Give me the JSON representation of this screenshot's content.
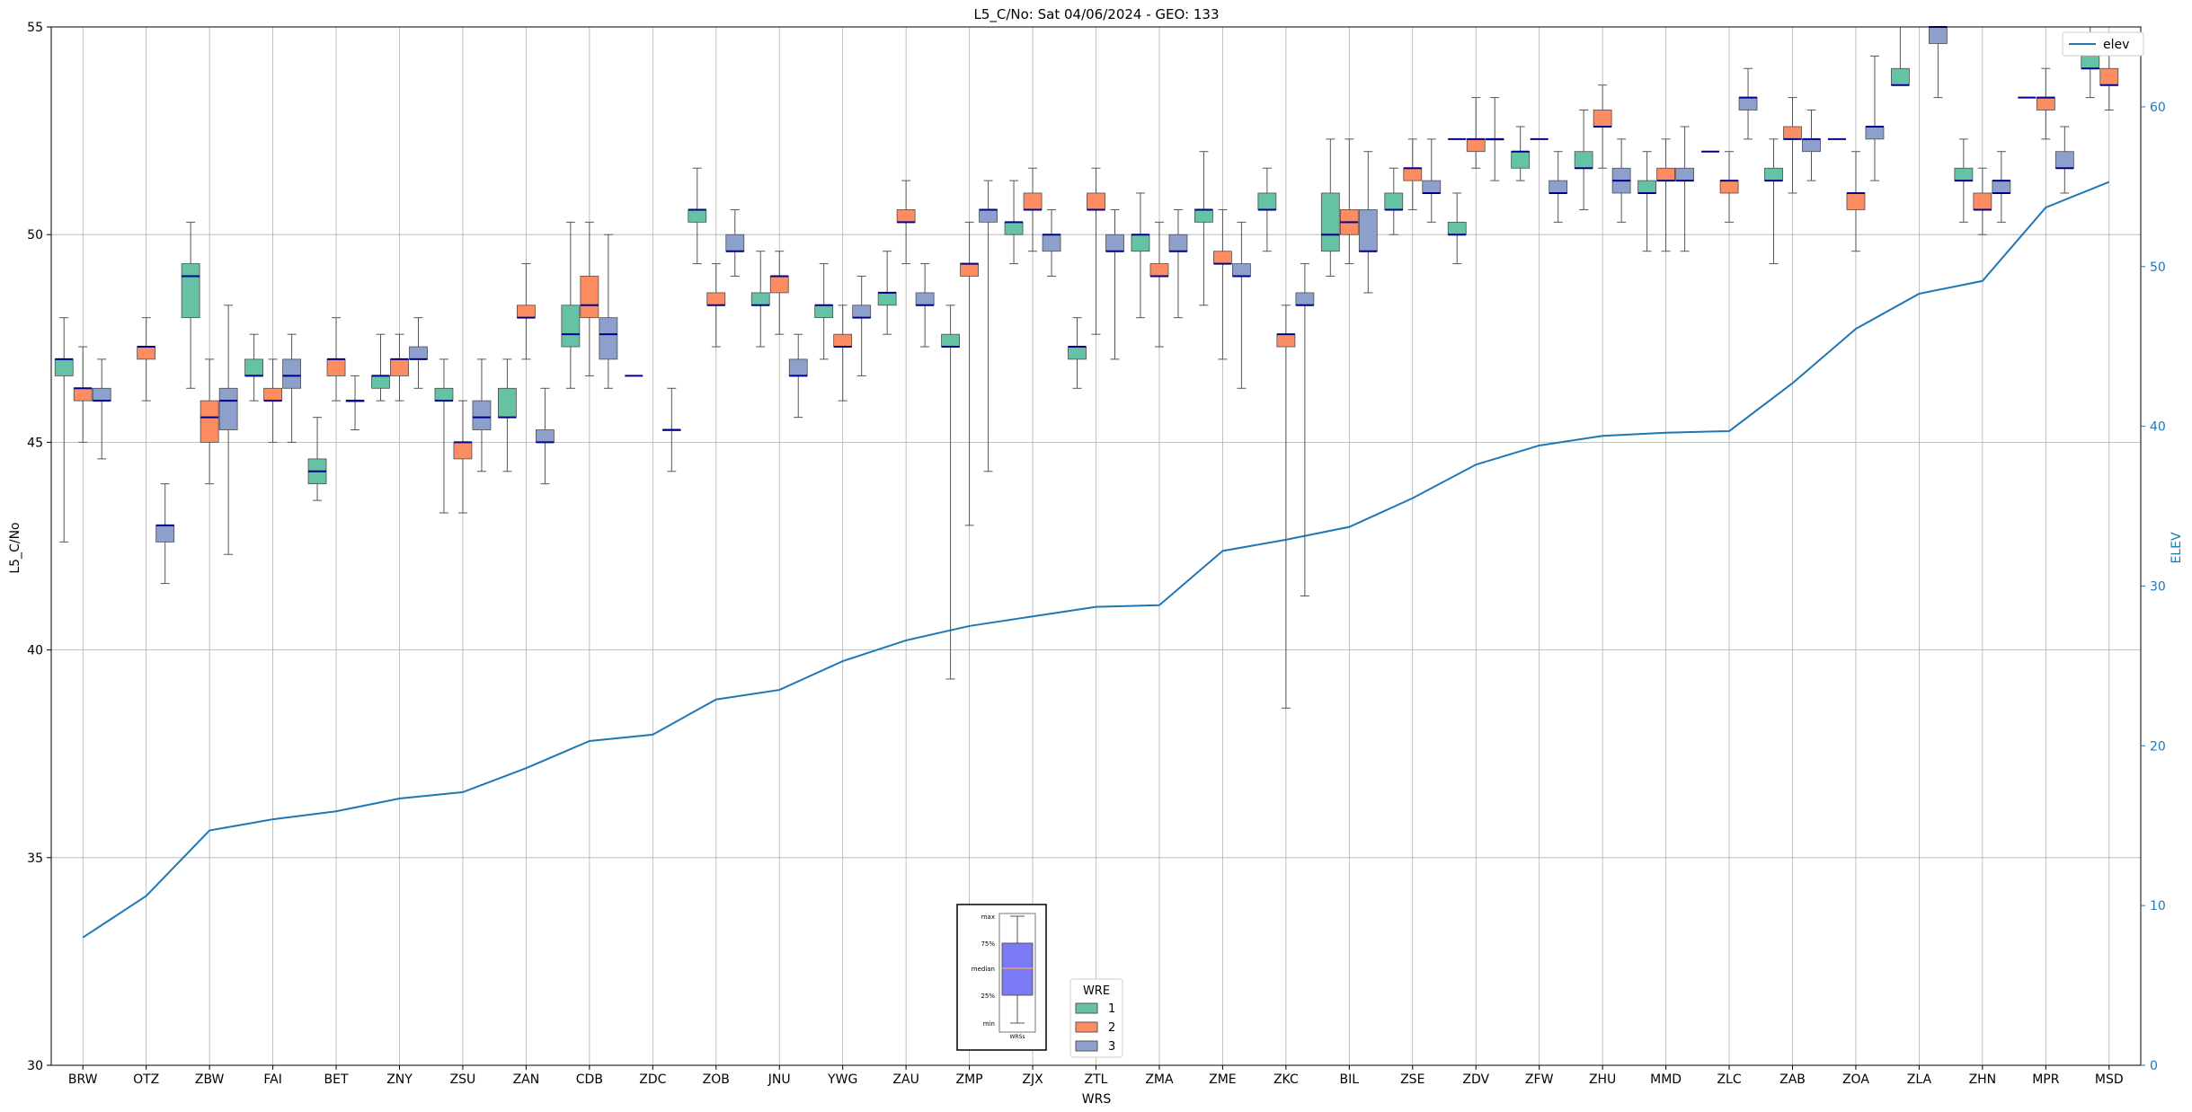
{
  "chart_data": {
    "type": "box",
    "title": "L5_C/No: Sat 04/06/2024 - GEO: 133",
    "xlabel": "WRS",
    "ylabel": "L5_C/No",
    "y2label": "ELEV",
    "ylim": [
      30,
      55
    ],
    "y2lim": [
      0,
      65
    ],
    "yticks": [
      30,
      35,
      40,
      45,
      50,
      55
    ],
    "y2ticks": [
      0,
      10,
      20,
      30,
      40,
      50,
      60
    ],
    "grid": true,
    "categories": [
      "BRW",
      "OTZ",
      "ZBW",
      "FAI",
      "BET",
      "ZNY",
      "ZSU",
      "ZAN",
      "CDB",
      "ZDC",
      "ZOB",
      "JNU",
      "YWG",
      "ZAU",
      "ZMP",
      "ZJX",
      "ZTL",
      "ZMA",
      "ZME",
      "ZKC",
      "BIL",
      "ZSE",
      "ZDV",
      "ZFW",
      "ZHU",
      "MMD",
      "ZLC",
      "ZAB",
      "ZOA",
      "ZLA",
      "ZHN",
      "MPR",
      "MSD"
    ],
    "wre_legend": {
      "title": "WRE",
      "entries": [
        "1",
        "2",
        "3"
      ],
      "placement": "lower-center"
    },
    "line_legend": {
      "label": "elev",
      "placement": "upper-right"
    },
    "stats_legend": {
      "labels": [
        "max",
        "75%",
        "median",
        "25%",
        "min"
      ],
      "xlabel": "WRSs"
    },
    "colors": {
      "wre1": "#66c2a5",
      "wre2": "#fc8d62",
      "wre3": "#8da0cb",
      "median": "#00008b",
      "elev": "#1f77b4",
      "whisker": "#555555",
      "grid": "#b0b0b0"
    },
    "series": [
      {
        "name": "1",
        "boxes": [
          [
            42.6,
            46.6,
            47.0,
            47.0,
            48.0
          ],
          null,
          [
            46.3,
            48.0,
            49.0,
            49.3,
            50.3
          ],
          [
            46.0,
            46.6,
            46.6,
            47.0,
            47.6
          ],
          [
            43.6,
            44.0,
            44.3,
            44.6,
            45.6
          ],
          [
            46.0,
            46.3,
            46.6,
            46.6,
            47.6
          ],
          [
            43.3,
            46.0,
            46.0,
            46.3,
            47.0
          ],
          [
            44.3,
            45.6,
            45.6,
            46.3,
            47.0
          ],
          [
            46.3,
            47.3,
            47.6,
            48.3,
            50.3
          ],
          null,
          [
            49.3,
            50.3,
            50.6,
            50.6,
            51.6
          ],
          [
            47.3,
            48.3,
            48.3,
            48.6,
            49.6
          ],
          [
            47.0,
            48.0,
            48.3,
            48.3,
            49.3
          ],
          [
            47.6,
            48.3,
            48.6,
            48.6,
            49.6
          ],
          [
            39.3,
            47.3,
            47.3,
            47.6,
            48.3
          ],
          [
            49.3,
            50.0,
            50.3,
            50.3,
            51.3
          ],
          [
            46.3,
            47.0,
            47.3,
            47.3,
            48.0
          ],
          [
            48.0,
            49.6,
            50.0,
            50.0,
            51.0
          ],
          [
            48.3,
            50.3,
            50.6,
            50.6,
            52.0
          ],
          [
            49.6,
            50.6,
            50.6,
            51.0,
            51.6
          ],
          [
            49.0,
            49.6,
            50.0,
            51.0,
            52.3
          ],
          [
            50.0,
            50.6,
            50.6,
            51.0,
            51.6
          ],
          [
            49.3,
            50.0,
            50.0,
            50.3,
            51.0
          ],
          [
            51.3,
            51.6,
            52.0,
            52.0,
            52.6
          ],
          [
            50.6,
            51.6,
            51.6,
            52.0,
            53.0
          ],
          [
            49.6,
            51.0,
            51.0,
            51.3,
            52.0
          ],
          null,
          [
            49.3,
            51.3,
            51.3,
            51.6,
            52.3
          ],
          null,
          [
            53.6,
            53.6,
            53.6,
            54.0,
            55.3
          ],
          [
            50.3,
            51.3,
            51.3,
            51.6,
            52.3
          ],
          null,
          [
            53.3,
            54.0,
            54.0,
            54.3,
            55.0
          ]
        ]
      },
      {
        "name": "2",
        "boxes": [
          [
            45.0,
            46.0,
            46.3,
            46.3,
            47.3
          ],
          [
            46.0,
            47.0,
            47.3,
            47.3,
            48.0
          ],
          [
            44.0,
            45.0,
            45.6,
            46.0,
            47.0
          ],
          [
            45.0,
            46.0,
            46.0,
            46.3,
            47.0
          ],
          [
            46.0,
            46.6,
            47.0,
            47.0,
            48.0
          ],
          [
            46.0,
            46.6,
            47.0,
            47.0,
            47.6
          ],
          [
            43.3,
            44.6,
            45.0,
            45.0,
            46.0
          ],
          [
            47.0,
            48.0,
            48.0,
            48.3,
            49.3
          ],
          [
            46.6,
            48.0,
            48.3,
            49.0,
            50.3
          ],
          null,
          [
            47.3,
            48.3,
            48.3,
            48.6,
            49.3
          ],
          [
            47.6,
            48.6,
            49.0,
            49.0,
            49.6
          ],
          [
            46.0,
            47.3,
            47.3,
            47.6,
            48.3
          ],
          [
            49.3,
            50.3,
            50.3,
            50.6,
            51.3
          ],
          [
            43.0,
            49.0,
            49.3,
            49.3,
            50.3
          ],
          [
            49.6,
            50.6,
            50.6,
            51.0,
            51.6
          ],
          [
            47.6,
            50.6,
            50.6,
            51.0,
            51.6
          ],
          [
            47.3,
            49.0,
            49.0,
            49.3,
            50.3
          ],
          [
            47.0,
            49.3,
            49.3,
            49.6,
            50.6
          ],
          [
            38.6,
            47.3,
            47.6,
            47.6,
            48.3
          ],
          [
            49.3,
            50.0,
            50.3,
            50.6,
            52.3
          ],
          [
            50.6,
            51.3,
            51.6,
            51.6,
            52.3
          ],
          [
            51.6,
            52.0,
            52.3,
            52.3,
            53.3
          ],
          null,
          [
            51.6,
            52.6,
            52.6,
            53.0,
            53.6
          ],
          [
            49.6,
            51.3,
            51.3,
            51.6,
            52.3
          ],
          [
            50.3,
            51.0,
            51.3,
            51.3,
            52.0
          ],
          [
            51.0,
            52.3,
            52.3,
            52.6,
            53.3
          ],
          [
            49.6,
            50.6,
            51.0,
            51.0,
            52.0
          ],
          null,
          [
            50.0,
            50.6,
            50.6,
            51.0,
            51.6
          ],
          [
            52.3,
            53.0,
            53.3,
            53.3,
            54.0
          ],
          [
            53.0,
            53.6,
            53.6,
            54.0,
            54.6
          ]
        ]
      },
      {
        "name": "3",
        "boxes": [
          [
            44.6,
            46.0,
            46.0,
            46.3,
            47.0
          ],
          [
            41.6,
            42.6,
            43.0,
            43.0,
            44.0
          ],
          [
            42.3,
            45.3,
            46.0,
            46.3,
            48.3
          ],
          [
            45.0,
            46.3,
            46.6,
            47.0,
            47.6
          ],
          [
            45.3,
            46.0,
            46.0,
            46.0,
            46.6
          ],
          [
            46.3,
            47.0,
            47.0,
            47.3,
            48.0
          ],
          [
            44.3,
            45.3,
            45.6,
            46.0,
            47.0
          ],
          [
            44.0,
            45.0,
            45.0,
            45.3,
            46.3
          ],
          [
            46.3,
            47.0,
            47.6,
            48.0,
            50.0
          ],
          [
            44.3,
            45.3,
            45.3,
            45.3,
            46.3
          ],
          [
            49.0,
            49.6,
            49.6,
            50.0,
            50.6
          ],
          [
            45.6,
            46.6,
            46.6,
            47.0,
            47.6
          ],
          [
            46.6,
            48.0,
            48.0,
            48.3,
            49.0
          ],
          [
            47.3,
            48.3,
            48.3,
            48.6,
            49.3
          ],
          [
            44.3,
            50.3,
            50.6,
            50.6,
            51.3
          ],
          [
            49.0,
            49.6,
            50.0,
            50.0,
            50.6
          ],
          [
            47.0,
            49.6,
            49.6,
            50.0,
            50.6
          ],
          [
            48.0,
            49.6,
            49.6,
            50.0,
            50.6
          ],
          [
            46.3,
            49.0,
            49.0,
            49.3,
            50.3
          ],
          [
            41.3,
            48.3,
            48.3,
            48.6,
            49.3
          ],
          [
            48.6,
            49.6,
            49.6,
            50.6,
            52.0
          ],
          [
            50.3,
            51.0,
            51.0,
            51.3,
            52.3
          ],
          [
            51.3,
            52.3,
            52.3,
            52.3,
            53.3
          ],
          [
            50.3,
            51.0,
            51.0,
            51.3,
            52.0
          ],
          [
            50.3,
            51.0,
            51.3,
            51.6,
            52.3
          ],
          [
            49.6,
            51.3,
            51.3,
            51.6,
            52.6
          ],
          [
            52.3,
            53.0,
            53.3,
            53.3,
            54.0
          ],
          [
            51.3,
            52.0,
            52.3,
            52.3,
            53.0
          ],
          [
            51.3,
            52.3,
            52.6,
            52.6,
            54.3
          ],
          [
            53.3,
            54.6,
            55.0,
            55.0,
            55.0
          ],
          [
            50.3,
            51.0,
            51.3,
            51.3,
            52.0
          ],
          [
            51.0,
            51.6,
            51.6,
            52.0,
            52.6
          ],
          null
        ]
      }
    ],
    "singles": [
      {
        "category": "ZDC",
        "wre": "1",
        "value": 46.6
      },
      {
        "category": "ZDV",
        "wre": "1",
        "value": 52.3
      },
      {
        "category": "ZFW",
        "wre": "2",
        "value": 52.3
      },
      {
        "category": "ZLC",
        "wre": "1",
        "value": 52.0
      },
      {
        "category": "ZOA",
        "wre": "1",
        "value": 52.3
      },
      {
        "category": "MPR",
        "wre": "1",
        "value": 53.3
      },
      {
        "category": "BET",
        "wre": "3",
        "value": 46.0
      },
      {
        "category": "ZHN",
        "wre": "3",
        "value": 51.0
      }
    ],
    "elev": [
      8.0,
      10.6,
      14.7,
      15.4,
      15.9,
      16.7,
      17.1,
      18.6,
      20.3,
      20.7,
      22.9,
      23.5,
      25.3,
      26.6,
      27.5,
      28.1,
      28.7,
      28.8,
      32.2,
      32.9,
      33.7,
      35.5,
      37.6,
      38.8,
      39.4,
      39.6,
      39.7,
      42.7,
      46.1,
      48.3,
      49.1,
      53.7,
      55.3
    ]
  }
}
